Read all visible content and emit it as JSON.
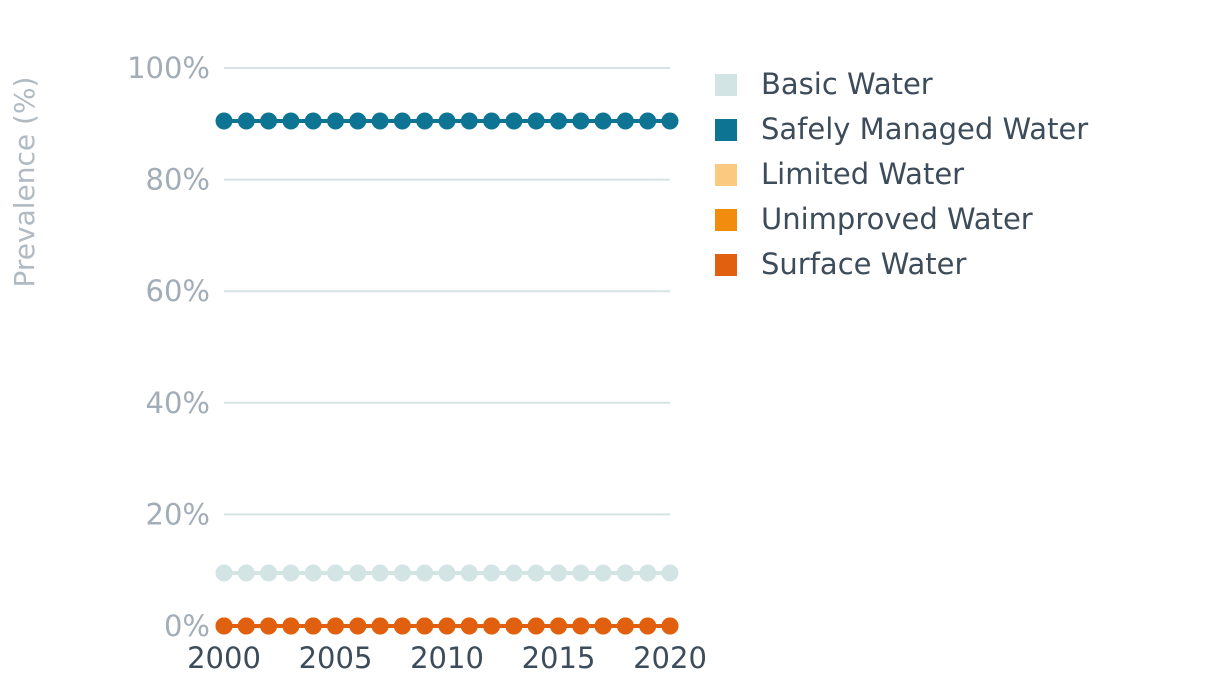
{
  "chart_data": {
    "type": "line",
    "ylabel": "Prevalence (%)",
    "xlabel": "",
    "x": [
      2000,
      2001,
      2002,
      2003,
      2004,
      2005,
      2006,
      2007,
      2008,
      2009,
      2010,
      2011,
      2012,
      2013,
      2014,
      2015,
      2016,
      2017,
      2018,
      2019,
      2020
    ],
    "x_tick_labels": [
      "2000",
      "2005",
      "2010",
      "2015",
      "2020"
    ],
    "x_ticks": [
      2000,
      2005,
      2010,
      2015,
      2020
    ],
    "y_tick_labels": [
      "0%",
      "20%",
      "40%",
      "60%",
      "80%",
      "100%"
    ],
    "y_ticks": [
      0,
      20,
      40,
      60,
      80,
      100
    ],
    "xlim": [
      2000,
      2020
    ],
    "ylim": [
      0,
      100
    ],
    "grid": "horizontal",
    "legend_position": "right",
    "series": [
      {
        "name": "Basic Water",
        "color": "#d2e5e4",
        "values": [
          9.5,
          9.5,
          9.5,
          9.5,
          9.5,
          9.5,
          9.5,
          9.5,
          9.5,
          9.5,
          9.5,
          9.5,
          9.5,
          9.5,
          9.5,
          9.5,
          9.5,
          9.5,
          9.5,
          9.5,
          9.5
        ]
      },
      {
        "name": "Safely Managed Water",
        "color": "#0e7493",
        "values": [
          90.5,
          90.5,
          90.5,
          90.5,
          90.5,
          90.5,
          90.5,
          90.5,
          90.5,
          90.5,
          90.5,
          90.5,
          90.5,
          90.5,
          90.5,
          90.5,
          90.5,
          90.5,
          90.5,
          90.5,
          90.5
        ]
      },
      {
        "name": "Limited Water",
        "color": "#fbca80",
        "values": [
          0,
          0,
          0,
          0,
          0,
          0,
          0,
          0,
          0,
          0,
          0,
          0,
          0,
          0,
          0,
          0,
          0,
          0,
          0,
          0,
          0
        ]
      },
      {
        "name": "Unimproved Water",
        "color": "#f28c0f",
        "values": [
          0,
          0,
          0,
          0,
          0,
          0,
          0,
          0,
          0,
          0,
          0,
          0,
          0,
          0,
          0,
          0,
          0,
          0,
          0,
          0,
          0
        ]
      },
      {
        "name": "Surface Water",
        "color": "#e0600f",
        "values": [
          0,
          0,
          0,
          0,
          0,
          0,
          0,
          0,
          0,
          0,
          0,
          0,
          0,
          0,
          0,
          0,
          0,
          0,
          0,
          0,
          0
        ]
      }
    ]
  }
}
